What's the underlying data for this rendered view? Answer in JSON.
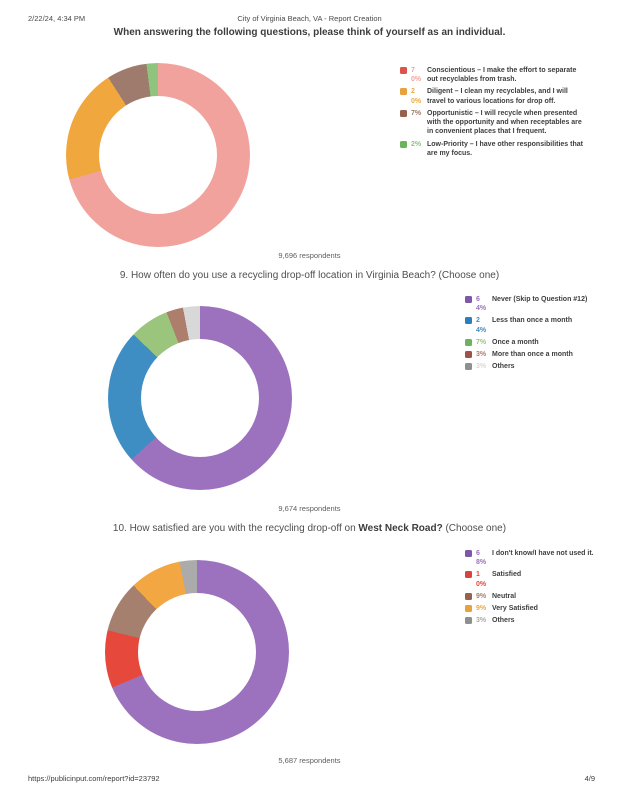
{
  "header": {
    "datetime": "2/22/24, 4:34 PM",
    "doc_title": "City of Virginia Beach, VA - Report Creation"
  },
  "intro_title": "When answering the following questions, please think of yourself as an individual.",
  "footer": {
    "url": "https://publicinput.com/report?id=23792",
    "page_number": "4/9"
  },
  "chart_data": [
    {
      "type": "donut",
      "title": "When answering the following questions, please think of yourself as an individual.",
      "categories": [
        "Conscientious – I make the effort to separate out recyclables from trash.",
        "Diligent – I clean my recyclables, and I will travel to various locations for drop off.",
        "Opportunistic – I will recycle when presented with the opportunity and when receptables are in convenient places that I frequent.",
        "Low-Priority – I have other responsibilities that are my focus."
      ],
      "values": [
        70,
        20,
        7,
        2
      ],
      "unit": "%",
      "pct_labels": [
        "70%",
        "20%",
        "7%",
        "2%"
      ],
      "swatch_colors": [
        "#DA5449",
        "#E9A23B",
        "#97614E",
        "#6CB35B"
      ],
      "arc_colors": [
        "#F1A29C",
        "#F0A73E",
        "#9E7B6D",
        "#8EC47D"
      ],
      "legend_position": "right",
      "respondents": 9696,
      "respondents_label": "9,696 respondents"
    },
    {
      "type": "donut",
      "title": "9. How often do you use a recycling drop-off location in Virginia Beach? (Choose one)",
      "categories": [
        "Never (Skip to Question #12)",
        "Less than once a month",
        "Once a month",
        "More than once a month",
        "Others"
      ],
      "values": [
        64,
        24,
        7,
        3,
        3
      ],
      "unit": "%",
      "pct_labels": [
        "64%",
        "24%",
        "7%",
        "3%",
        "3%"
      ],
      "swatch_colors": [
        "#7E57A8",
        "#2D7FBB",
        "#6CB35B",
        "#A0524A",
        "#8F8F8F"
      ],
      "arc_colors": [
        "#9C72BE",
        "#3E8EC4",
        "#9BC57D",
        "#AD7E6C",
        "#D8D8D8"
      ],
      "legend_position": "right",
      "respondents": 9674,
      "respondents_label": "9,674 respondents"
    },
    {
      "type": "donut",
      "title": "10. How satisfied are you with the recycling drop-off on West Neck Road? (Choose one)",
      "title_prefix": "10. How satisfied are you with the recycling drop-off on ",
      "title_bold": "West Neck Road?",
      "title_suffix": " (Choose one)",
      "categories": [
        "I don't know/I have not used it.",
        "Satisfied",
        "Neutral",
        "Very Satisfied",
        "Others"
      ],
      "values": [
        68,
        10,
        9,
        9,
        3
      ],
      "unit": "%",
      "pct_labels": [
        "68%",
        "10%",
        "9%",
        "9%",
        "3%"
      ],
      "swatch_colors": [
        "#7E57A8",
        "#D9453C",
        "#97614E",
        "#E9A23B",
        "#8F8F8F"
      ],
      "arc_colors": [
        "#9C72BE",
        "#E6493B",
        "#A5806F",
        "#F2A742",
        "#ABABAB"
      ],
      "legend_position": "right",
      "respondents": 5687,
      "respondents_label": "5,687 respondents"
    }
  ]
}
